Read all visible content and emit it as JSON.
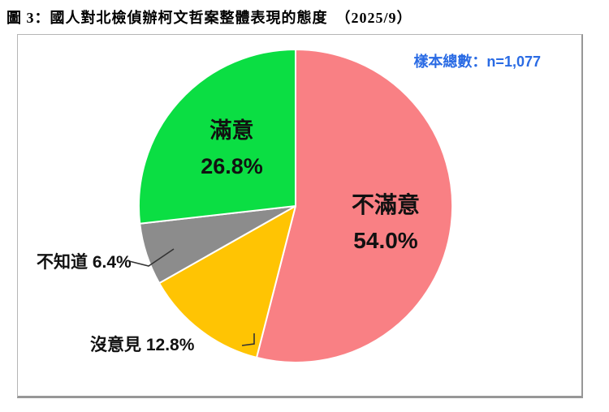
{
  "title": "圖 3：國人對北檢偵辦柯文哲案整體表現的態度　（2025/9）",
  "sample_label": "樣本總數：n=1,077",
  "chart_data": {
    "type": "pie",
    "title": "國人對北檢偵辦柯文哲案整體表現的態度",
    "period": "2025/9",
    "sample_size_text": "樣本總數：n=1,077",
    "sample_n": 1077,
    "direction": "clockwise",
    "start_angle_deg": 0,
    "legend_position": "none",
    "segments": [
      {
        "name": "dissatisfied",
        "label": "不滿意",
        "value": 54.0,
        "display": "54.0%",
        "color": "#f98084"
      },
      {
        "name": "no-opinion",
        "label": "沒意見",
        "value": 12.8,
        "display": "12.8%",
        "color": "#ffc403"
      },
      {
        "name": "dont-know",
        "label": "不知道",
        "value": 6.4,
        "display": "6.4%",
        "color": "#8c8c8c"
      },
      {
        "name": "satisfied",
        "label": "滿意",
        "value": 26.8,
        "display": "26.8%",
        "color": "#0bde43"
      }
    ],
    "colors": {
      "accent_blue": "#2a6be4",
      "label_text": "#111111",
      "leader_line": "#333333"
    }
  }
}
